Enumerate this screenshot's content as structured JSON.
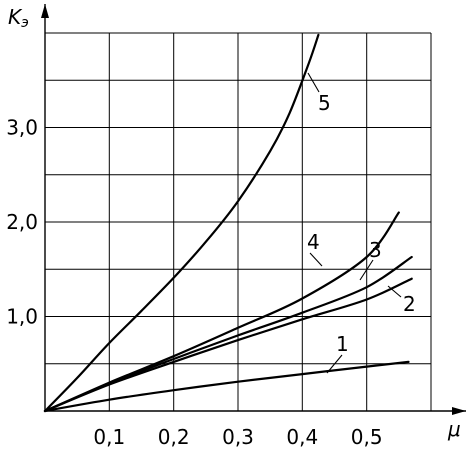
{
  "chart_data": {
    "type": "line",
    "xlabel": "μ",
    "ylabel": {
      "main": "K",
      "sub": "э"
    },
    "xlim": [
      0,
      0.6
    ],
    "ylim": [
      0,
      4.0
    ],
    "xticks": [
      {
        "value": 0.1,
        "label": "0,1"
      },
      {
        "value": 0.2,
        "label": "0,2"
      },
      {
        "value": 0.3,
        "label": "0,3"
      },
      {
        "value": 0.4,
        "label": "0,4"
      },
      {
        "value": 0.5,
        "label": "0,5"
      }
    ],
    "yticks": [
      {
        "value": 1.0,
        "label": "1,0"
      },
      {
        "value": 2.0,
        "label": "2,0"
      },
      {
        "value": 3.0,
        "label": "3,0"
      }
    ],
    "grid": true,
    "series": [
      {
        "name": "1",
        "x": [
          0,
          0.1,
          0.2,
          0.3,
          0.4,
          0.5,
          0.565
        ],
        "y": [
          0,
          0.12,
          0.22,
          0.31,
          0.39,
          0.47,
          0.52
        ]
      },
      {
        "name": "2",
        "x": [
          0,
          0.1,
          0.2,
          0.3,
          0.4,
          0.5,
          0.57
        ],
        "y": [
          0,
          0.28,
          0.52,
          0.75,
          0.97,
          1.18,
          1.4
        ]
      },
      {
        "name": "3",
        "x": [
          0,
          0.1,
          0.2,
          0.3,
          0.4,
          0.5,
          0.57
        ],
        "y": [
          0,
          0.29,
          0.55,
          0.8,
          1.04,
          1.31,
          1.63
        ]
      },
      {
        "name": "4",
        "x": [
          0,
          0.1,
          0.2,
          0.3,
          0.4,
          0.5,
          0.55
        ],
        "y": [
          0,
          0.3,
          0.58,
          0.88,
          1.19,
          1.63,
          2.1
        ]
      },
      {
        "name": "5",
        "x": [
          0,
          0.05,
          0.1,
          0.15,
          0.2,
          0.25,
          0.3,
          0.35,
          0.38,
          0.41,
          0.425
        ],
        "y": [
          0,
          0.35,
          0.72,
          1.06,
          1.41,
          1.79,
          2.22,
          2.75,
          3.15,
          3.68,
          3.98
        ]
      }
    ]
  }
}
